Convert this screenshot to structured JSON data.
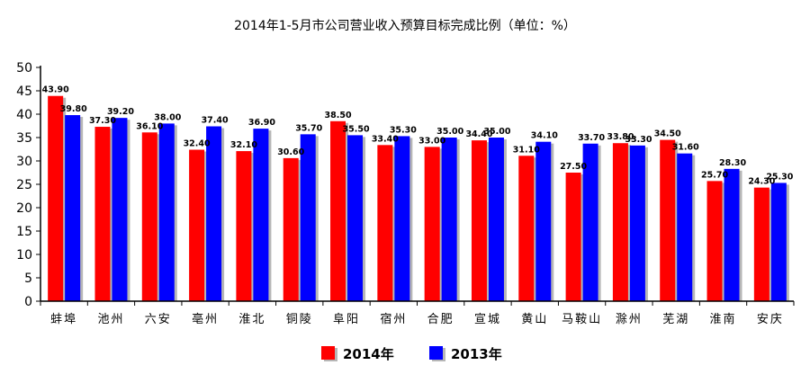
{
  "chart_data": {
    "type": "bar",
    "title": "2014年1-5月市公司营业收入预算目标完成比例（单位：%）",
    "xlabel": "",
    "ylabel": "",
    "ylim": [
      0,
      50
    ],
    "yticks": [
      0,
      5,
      10,
      15,
      20,
      25,
      30,
      35,
      40,
      45,
      50
    ],
    "grid": false,
    "legend": "bottom-center",
    "categories": [
      "蚌埠",
      "池州",
      "六安",
      "亳州",
      "淮北",
      "铜陵",
      "阜阳",
      "宿州",
      "合肥",
      "宣城",
      "黄山",
      "马鞍山",
      "滁州",
      "芜湖",
      "淮南",
      "安庆"
    ],
    "series": [
      {
        "name": "2014年",
        "color": "#ff0000",
        "values": [
          43.9,
          37.3,
          36.1,
          32.4,
          32.1,
          30.6,
          38.5,
          33.4,
          33.0,
          34.4,
          31.1,
          27.5,
          33.8,
          34.5,
          25.7,
          24.3
        ],
        "labels": [
          "43.90",
          "37.30",
          "36.10",
          "32.40",
          "32.10",
          "30.60",
          "38.50",
          "33.40",
          "33.00",
          "34.40",
          "31.10",
          "27.50",
          "33.80",
          "34.50",
          "25.70",
          "24.30"
        ]
      },
      {
        "name": "2013年",
        "color": "#0000ff",
        "values": [
          39.8,
          39.2,
          38.0,
          37.4,
          36.9,
          35.7,
          35.5,
          35.3,
          35.0,
          35.0,
          34.1,
          33.7,
          33.3,
          31.6,
          28.3,
          25.3
        ],
        "labels": [
          "39.80",
          "39.20",
          "38.00",
          "37.40",
          "36.90",
          "35.70",
          "35.50",
          "35.30",
          "35.00",
          "35.00",
          "34.10",
          "33.70",
          "33.30",
          "31.60",
          "28.30",
          "25.30"
        ]
      }
    ]
  }
}
